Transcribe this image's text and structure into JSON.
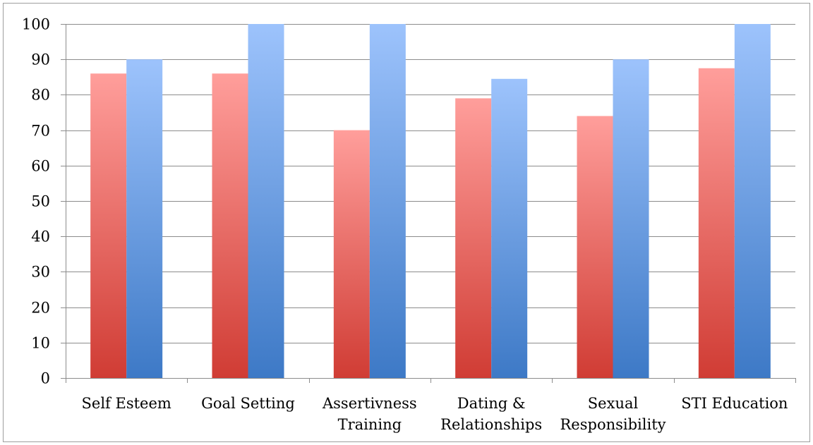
{
  "chart_data": {
    "type": "bar",
    "title": "",
    "xlabel": "",
    "ylabel": "",
    "ylim": [
      0,
      100
    ],
    "yticks": [
      0,
      10,
      20,
      30,
      40,
      50,
      60,
      70,
      80,
      90,
      100
    ],
    "grid": true,
    "legend": "none",
    "categories": [
      [
        "Self Esteem"
      ],
      [
        "Goal Setting"
      ],
      [
        "Assertivness",
        "Training"
      ],
      [
        "Dating &",
        "Relationships"
      ],
      [
        "Sexual",
        "Responsibility"
      ],
      [
        "STI Education"
      ]
    ],
    "series": [
      {
        "values": [
          86,
          86,
          70,
          79,
          74,
          87.5
        ],
        "color_top": "#ff9e9b",
        "color_bottom": "#d03c34"
      },
      {
        "values": [
          90,
          100,
          100,
          84.5,
          90,
          100
        ],
        "color_top": "#9dc3fc",
        "color_bottom": "#3d79c6"
      }
    ],
    "colors": {
      "axis": "#8c8c8c",
      "grid": "#8c8c8c",
      "text": "#000000"
    }
  }
}
